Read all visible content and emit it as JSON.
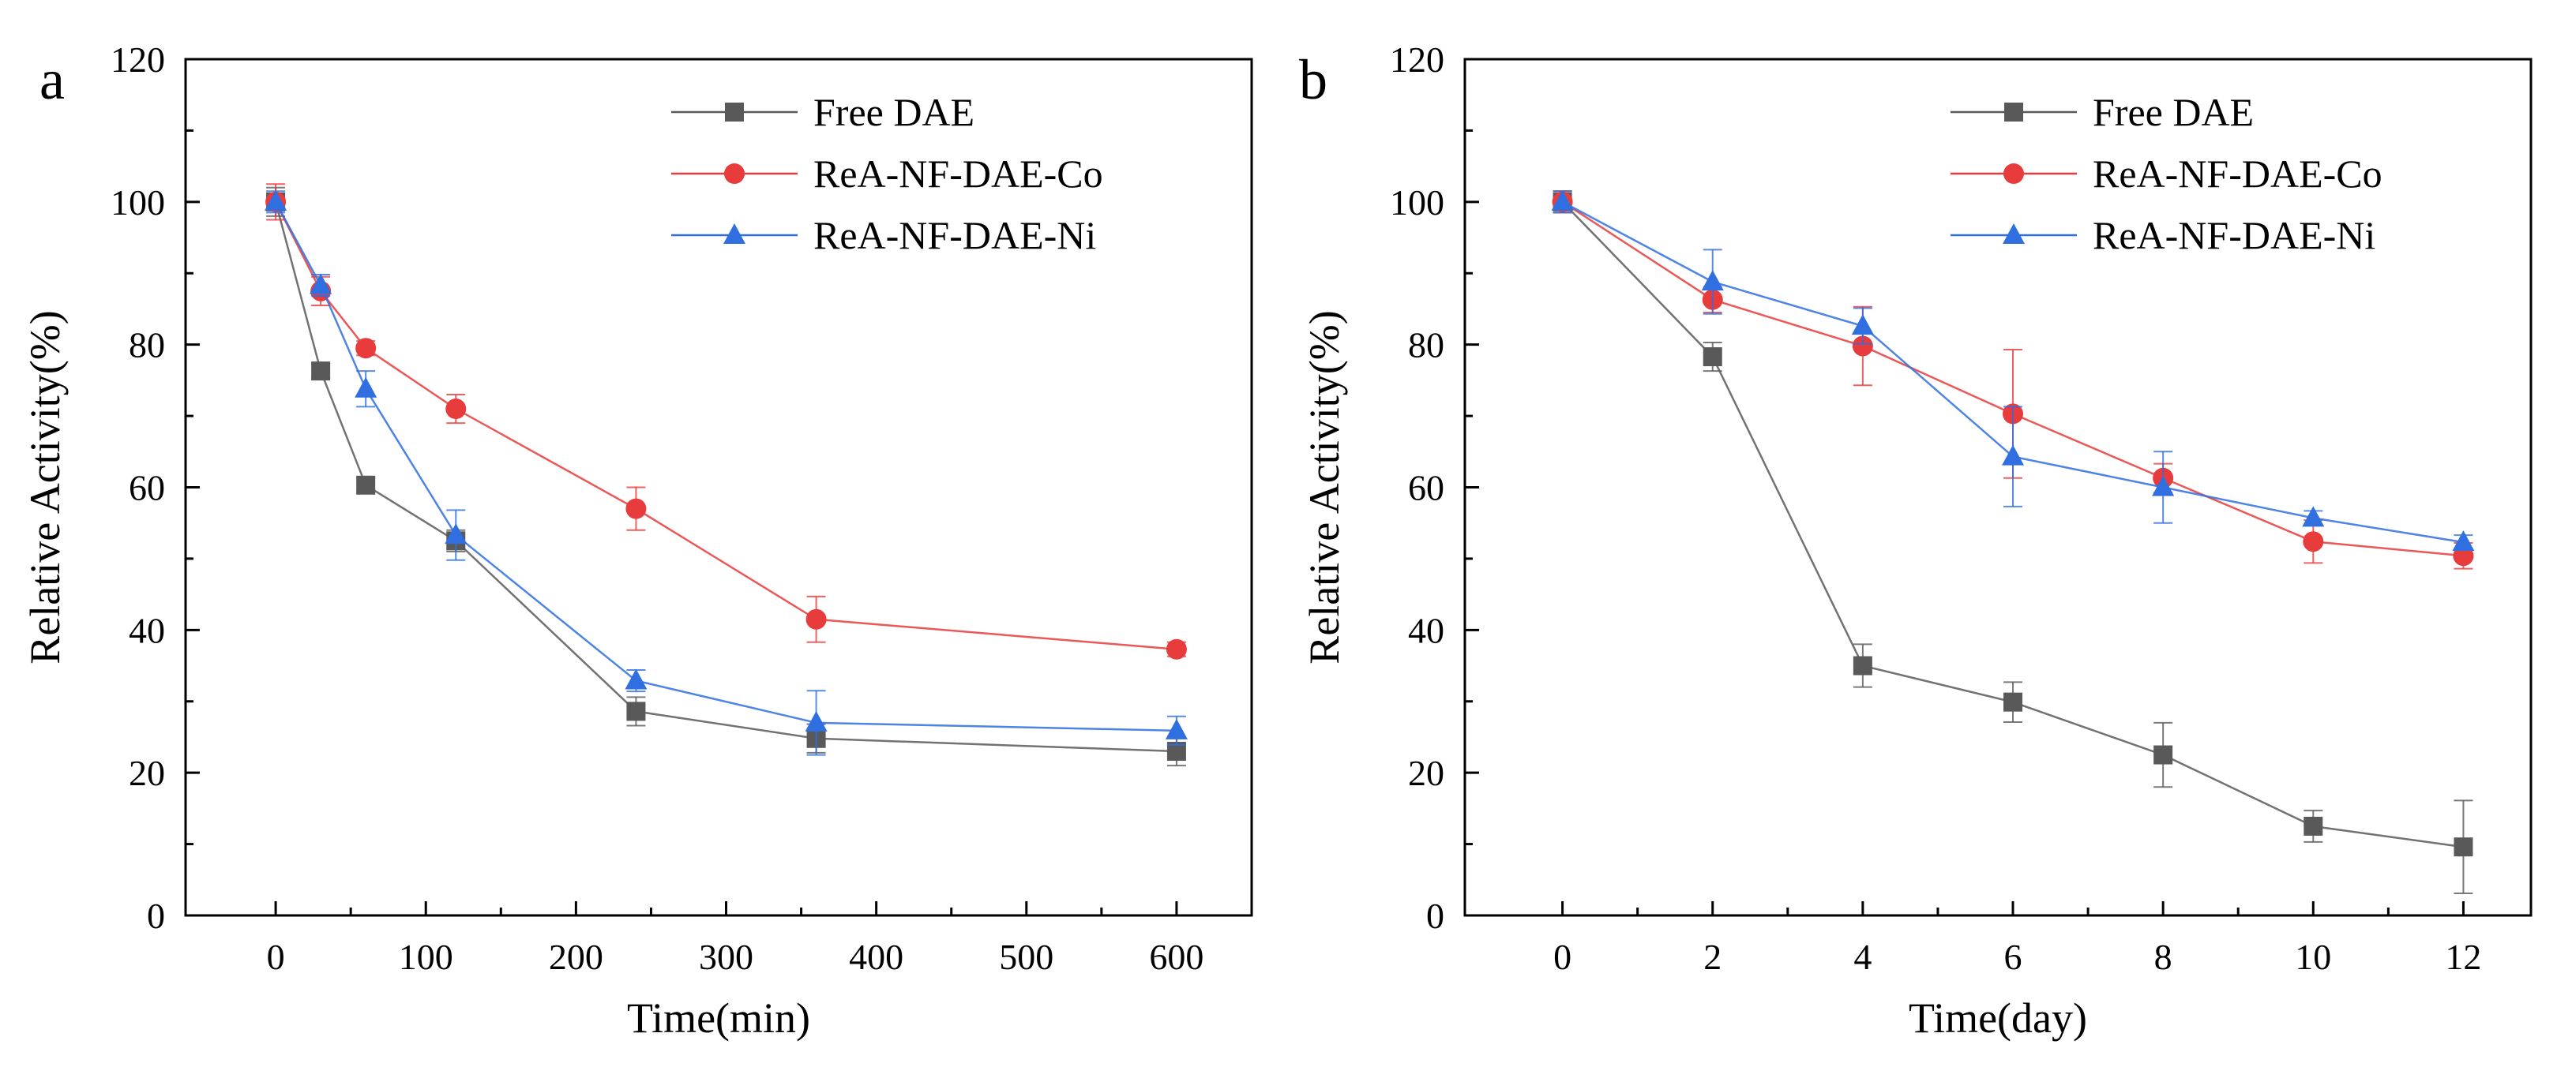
{
  "chart_data": [
    {
      "panel": "a",
      "type": "line",
      "xlabel": "Time(min)",
      "ylabel": "Relative Activity(%)",
      "xlim": [
        -60,
        650
      ],
      "ylim": [
        0,
        120
      ],
      "xticks": [
        0,
        100,
        200,
        300,
        400,
        500,
        600
      ],
      "yticks": [
        0,
        20,
        40,
        60,
        80,
        100,
        120
      ],
      "legend_position": "top-right",
      "grid": false,
      "series": [
        {
          "name": "Free DAE",
          "color": "#595959",
          "marker": "square",
          "x": [
            0,
            30,
            60,
            120,
            240,
            360,
            600
          ],
          "values": [
            100,
            76.3,
            60.3,
            52.5,
            28.6,
            24.8,
            23.0
          ],
          "errors": [
            2.0,
            1.0,
            1.0,
            1.5,
            2.0,
            2.0,
            2.0
          ]
        },
        {
          "name": "ReA-NF-DAE-Co",
          "color": "#e83b3b",
          "marker": "circle",
          "x": [
            0,
            30,
            60,
            120,
            240,
            360,
            600
          ],
          "values": [
            100,
            87.5,
            79.5,
            71.0,
            57.0,
            41.5,
            37.3
          ],
          "errors": [
            2.5,
            2.0,
            1.0,
            2.0,
            3.0,
            3.2,
            1.0
          ]
        },
        {
          "name": "ReA-NF-DAE-Ni",
          "color": "#2f6fe0",
          "marker": "triangle",
          "x": [
            0,
            30,
            60,
            120,
            240,
            360,
            600
          ],
          "values": [
            100,
            88.3,
            73.8,
            53.3,
            32.9,
            27.0,
            25.9
          ],
          "errors": [
            1.5,
            1.5,
            2.5,
            3.5,
            1.5,
            4.5,
            2.0
          ]
        }
      ]
    },
    {
      "panel": "b",
      "type": "line",
      "xlabel": "Time(day)",
      "ylabel": "Relative Activity(%)",
      "xlim": [
        -1.3,
        12.9
      ],
      "ylim": [
        0,
        120
      ],
      "xticks": [
        0,
        2,
        4,
        6,
        8,
        10,
        12
      ],
      "yticks": [
        0,
        20,
        40,
        60,
        80,
        100,
        120
      ],
      "legend_position": "top-right",
      "grid": false,
      "series": [
        {
          "name": "Free DAE",
          "color": "#595959",
          "marker": "square",
          "x": [
            0,
            2,
            4,
            6,
            8,
            10,
            12
          ],
          "values": [
            100,
            78.3,
            35.0,
            29.9,
            22.5,
            12.5,
            9.6
          ],
          "errors": [
            1.5,
            2.0,
            3.0,
            2.8,
            4.5,
            2.2,
            6.5
          ]
        },
        {
          "name": "ReA-NF-DAE-Co",
          "color": "#e83b3b",
          "marker": "circle",
          "x": [
            0,
            2,
            4,
            6,
            8,
            10,
            12
          ],
          "values": [
            100,
            86.3,
            79.8,
            70.3,
            61.3,
            52.4,
            50.4
          ],
          "errors": [
            1.5,
            1.8,
            5.5,
            9.0,
            2.0,
            3.0,
            1.8
          ]
        },
        {
          "name": "ReA-NF-DAE-Ni",
          "color": "#2f6fe0",
          "marker": "triangle",
          "x": [
            0,
            2,
            4,
            6,
            8,
            10,
            12
          ],
          "values": [
            100,
            88.8,
            82.6,
            64.3,
            60.0,
            55.7,
            52.3
          ],
          "errors": [
            1.5,
            4.5,
            2.5,
            7.0,
            5.0,
            1.0,
            1.0
          ]
        }
      ]
    }
  ]
}
